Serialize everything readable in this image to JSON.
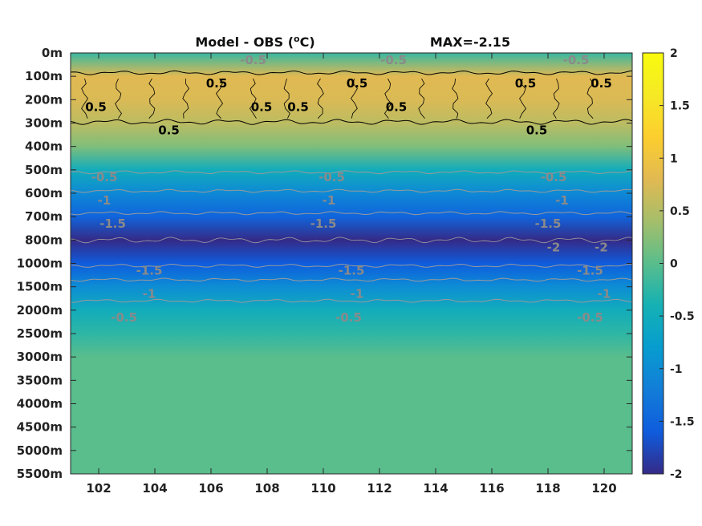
{
  "chart_data": {
    "type": "heatmap",
    "title": "Model - OBS (",
    "title_unit": "o",
    "title_unit_suffix": "C)",
    "max_label": "MAX=-2.15",
    "x_ticks": [
      "102",
      "104",
      "106",
      "108",
      "110",
      "112",
      "114",
      "116",
      "118",
      "120"
    ],
    "x_values": [
      102,
      104,
      106,
      108,
      110,
      112,
      114,
      116,
      118,
      120
    ],
    "xlim": [
      101,
      121
    ],
    "y_ticks": [
      "0m",
      "100m",
      "200m",
      "300m",
      "400m",
      "500m",
      "600m",
      "700m",
      "800m",
      "1000m",
      "1500m",
      "2000m",
      "2500m",
      "3000m",
      "3500m",
      "4000m",
      "4500m",
      "5000m",
      "5500m"
    ],
    "colorbar": {
      "ticks": [
        "2",
        "1.5",
        "1",
        "0.5",
        "0",
        "-0.5",
        "-1",
        "-1.5",
        "-2"
      ],
      "values": [
        2,
        1.5,
        1,
        0.5,
        0,
        -0.5,
        -1,
        -1.5,
        -2
      ],
      "range": [
        -2,
        2
      ],
      "colormap": "parula"
    },
    "profile": {
      "levels": [
        "0m",
        "100m",
        "200m",
        "300m",
        "400m",
        "500m",
        "600m",
        "700m",
        "800m",
        "1000m",
        "1500m",
        "2000m",
        "2500m",
        "3000m",
        "3500m",
        "4000m",
        "4500m",
        "5000m",
        "5500m"
      ],
      "values": [
        -0.2,
        0.8,
        0.75,
        0.55,
        0.2,
        -0.5,
        -1.05,
        -1.5,
        -2.0,
        -1.6,
        -1.0,
        -0.5,
        -0.25,
        0.0,
        0.0,
        0.0,
        0.0,
        0.0,
        0.0
      ]
    },
    "contour_labels": [
      {
        "text": "-0.5",
        "x": 107.5,
        "y": "0m",
        "style": "gray"
      },
      {
        "text": "-0.5",
        "x": 112.5,
        "y": "0m",
        "style": "gray"
      },
      {
        "text": "-0.5",
        "x": 119.0,
        "y": "0m",
        "style": "gray"
      },
      {
        "text": "0.5",
        "x": 106.2,
        "y": "100m",
        "style": "black"
      },
      {
        "text": "0.5",
        "x": 111.2,
        "y": "100m",
        "style": "black"
      },
      {
        "text": "0.5",
        "x": 117.2,
        "y": "100m",
        "style": "black"
      },
      {
        "text": "0.5",
        "x": 119.9,
        "y": "100m",
        "style": "black"
      },
      {
        "text": "0.5",
        "x": 101.9,
        "y": "200m",
        "style": "black"
      },
      {
        "text": "0.5",
        "x": 107.8,
        "y": "200m",
        "style": "black"
      },
      {
        "text": "0.5",
        "x": 109.1,
        "y": "200m",
        "style": "black"
      },
      {
        "text": "0.5",
        "x": 112.6,
        "y": "200m",
        "style": "black"
      },
      {
        "text": "0.5",
        "x": 104.5,
        "y": "300m",
        "style": "black"
      },
      {
        "text": "0.5",
        "x": 117.6,
        "y": "300m",
        "style": "black"
      },
      {
        "text": "-0.5",
        "x": 102.2,
        "y": "500m",
        "style": "gray"
      },
      {
        "text": "-0.5",
        "x": 110.3,
        "y": "500m",
        "style": "gray"
      },
      {
        "text": "-0.5",
        "x": 118.2,
        "y": "500m",
        "style": "gray"
      },
      {
        "text": "-1",
        "x": 102.2,
        "y": "600m",
        "style": "gray"
      },
      {
        "text": "-1",
        "x": 110.2,
        "y": "600m",
        "style": "gray"
      },
      {
        "text": "-1",
        "x": 118.5,
        "y": "600m",
        "style": "gray"
      },
      {
        "text": "-1.5",
        "x": 102.5,
        "y": "700m",
        "style": "gray"
      },
      {
        "text": "-1.5",
        "x": 110.0,
        "y": "700m",
        "style": "gray"
      },
      {
        "text": "-1.5",
        "x": 118.0,
        "y": "700m",
        "style": "gray"
      },
      {
        "text": "-2",
        "x": 118.2,
        "y": "800m",
        "style": "gray"
      },
      {
        "text": "-2",
        "x": 119.9,
        "y": "800m",
        "style": "gray"
      },
      {
        "text": "-1.5",
        "x": 103.8,
        "y": "1000m",
        "style": "gray"
      },
      {
        "text": "-1.5",
        "x": 111.0,
        "y": "1000m",
        "style": "gray"
      },
      {
        "text": "-1.5",
        "x": 119.5,
        "y": "1000m",
        "style": "gray"
      },
      {
        "text": "-1",
        "x": 103.8,
        "y": "1500m",
        "style": "gray"
      },
      {
        "text": "-1",
        "x": 111.2,
        "y": "1500m",
        "style": "gray"
      },
      {
        "text": "-1",
        "x": 120.0,
        "y": "1500m",
        "style": "gray"
      },
      {
        "text": "-0.5",
        "x": 102.9,
        "y": "2000m",
        "style": "gray"
      },
      {
        "text": "-0.5",
        "x": 110.9,
        "y": "2000m",
        "style": "gray"
      },
      {
        "text": "-0.5",
        "x": 119.5,
        "y": "2000m",
        "style": "gray"
      }
    ]
  }
}
